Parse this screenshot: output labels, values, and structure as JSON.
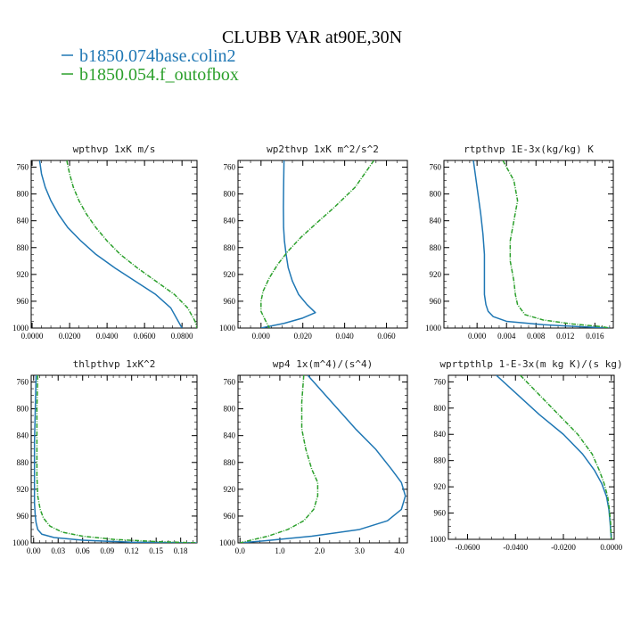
{
  "figure": {
    "title": "CLUBB VAR at90E,30N",
    "legend": [
      {
        "label": "b1850.074base.colin2",
        "color": "#1f77b4"
      },
      {
        "label": "b1850.054.f_outofbox",
        "color": "#2ca02c"
      }
    ]
  },
  "chart_data": [
    {
      "type": "line",
      "title": "wpthvp  1xK m/s",
      "xlim": [
        -0.0005,
        0.088
      ],
      "ylim": [
        1000,
        750
      ],
      "xticks": [
        0.0,
        0.02,
        0.04,
        0.06,
        0.08
      ],
      "xtick_labels": [
        "0.0000",
        "0.0200",
        "0.0400",
        "0.0600",
        "0.0800"
      ],
      "yticks": [
        760,
        800,
        840,
        880,
        920,
        960,
        1000
      ],
      "ytick_labels": [
        "760",
        "800",
        "840",
        "880",
        "920",
        "960",
        "1000"
      ],
      "series": [
        {
          "name": "b1850.074base.colin2",
          "x": [
            0.004,
            0.005,
            0.007,
            0.01,
            0.014,
            0.019,
            0.026,
            0.034,
            0.044,
            0.055,
            0.066,
            0.074,
            0.078,
            0.08
          ],
          "y": [
            750,
            770,
            790,
            810,
            830,
            850,
            870,
            890,
            910,
            930,
            950,
            970,
            990,
            1000
          ]
        },
        {
          "name": "b1850.054.f_outofbox",
          "x": [
            0.0185,
            0.02,
            0.022,
            0.025,
            0.029,
            0.034,
            0.04,
            0.047,
            0.056,
            0.066,
            0.076,
            0.083,
            0.087,
            0.088
          ],
          "y": [
            750,
            770,
            790,
            810,
            830,
            850,
            870,
            890,
            910,
            930,
            950,
            970,
            990,
            1000
          ]
        }
      ]
    },
    {
      "type": "line",
      "title": "wp2thvp  1xK m^2/s^2",
      "xlim": [
        -0.011,
        0.07
      ],
      "ylim": [
        1000,
        750
      ],
      "xticks": [
        0.0,
        0.02,
        0.04,
        0.06
      ],
      "xtick_labels": [
        "0.000",
        "0.020",
        "0.040",
        "0.060"
      ],
      "yticks": [
        760,
        800,
        840,
        880,
        920,
        960,
        1000
      ],
      "ytick_labels": [
        "760",
        "800",
        "840",
        "880",
        "920",
        "960",
        "1000"
      ],
      "series": [
        {
          "name": "b1850.074base.colin2",
          "x": [
            0.011,
            0.0108,
            0.0107,
            0.0108,
            0.0112,
            0.012,
            0.013,
            0.015,
            0.018,
            0.022,
            0.026,
            0.02,
            0.011,
            0.0
          ],
          "y": [
            750,
            790,
            820,
            850,
            870,
            890,
            910,
            930,
            950,
            965,
            977,
            985,
            993,
            1000
          ]
        },
        {
          "name": "b1850.054.f_outofbox",
          "x": [
            0.054,
            0.045,
            0.035,
            0.026,
            0.019,
            0.013,
            0.008,
            0.004,
            0.001,
            0.0,
            0.0,
            0.002,
            0.004
          ],
          "y": [
            750,
            790,
            820,
            845,
            865,
            885,
            905,
            925,
            945,
            960,
            975,
            988,
            1000
          ]
        }
      ]
    },
    {
      "type": "line",
      "title": "rtpthvp  1E-3x(kg/kg) K",
      "xlim": [
        -0.0045,
        0.0185
      ],
      "ylim": [
        1000,
        750
      ],
      "xticks": [
        0.0,
        0.004,
        0.008,
        0.012,
        0.016
      ],
      "xtick_labels": [
        "0.000",
        "0.004",
        "0.008",
        "0.012",
        "0.016"
      ],
      "yticks": [
        760,
        800,
        840,
        880,
        920,
        960,
        1000
      ],
      "ytick_labels": [
        "760",
        "800",
        "840",
        "880",
        "920",
        "960",
        "1000"
      ],
      "series": [
        {
          "name": "b1850.074base.colin2",
          "x": [
            -0.0005,
            0.0,
            0.0005,
            0.0008,
            0.001,
            0.001,
            0.001,
            0.0012,
            0.0015,
            0.0022,
            0.004,
            0.009,
            0.014,
            0.018
          ],
          "y": [
            750,
            790,
            830,
            860,
            890,
            920,
            950,
            965,
            975,
            983,
            990,
            995,
            998,
            1000
          ]
        },
        {
          "name": "b1850.054.f_outofbox",
          "x": [
            0.0035,
            0.005,
            0.0055,
            0.005,
            0.0045,
            0.0045,
            0.005,
            0.0052,
            0.0055,
            0.0065,
            0.009,
            0.013,
            0.017,
            0.018
          ],
          "y": [
            750,
            780,
            810,
            840,
            870,
            900,
            930,
            950,
            965,
            980,
            988,
            994,
            998,
            1000
          ]
        }
      ]
    },
    {
      "type": "line",
      "title": "thlpthvp  1xK^2",
      "xlim": [
        -0.003,
        0.2
      ],
      "ylim": [
        1000,
        750
      ],
      "xticks": [
        0.0,
        0.03,
        0.06,
        0.09,
        0.12,
        0.15,
        0.18
      ],
      "xtick_labels": [
        "0.00",
        "0.03",
        "0.06",
        "0.09",
        "0.12",
        "0.15",
        "0.18"
      ],
      "yticks": [
        760,
        800,
        840,
        880,
        920,
        960,
        1000
      ],
      "ytick_labels": [
        "760",
        "800",
        "840",
        "880",
        "920",
        "960",
        "1000"
      ],
      "series": [
        {
          "name": "b1850.074base.colin2",
          "x": [
            0.003,
            0.002,
            0.001,
            0.001,
            0.001,
            0.002,
            0.003,
            0.005,
            0.01,
            0.025,
            0.06,
            0.12,
            0.2
          ],
          "y": [
            750,
            800,
            850,
            900,
            940,
            960,
            970,
            980,
            987,
            992,
            996,
            999,
            1000
          ]
        },
        {
          "name": "b1850.054.f_outofbox",
          "x": [
            0.005,
            0.004,
            0.004,
            0.004,
            0.005,
            0.008,
            0.012,
            0.02,
            0.035,
            0.06,
            0.1,
            0.15,
            0.2
          ],
          "y": [
            750,
            800,
            850,
            900,
            930,
            950,
            963,
            975,
            984,
            990,
            995,
            998,
            1000
          ]
        }
      ]
    },
    {
      "type": "line",
      "title": "wp4  1x(m^4)/(s^4)",
      "xlim": [
        -0.05,
        4.2
      ],
      "ylim": [
        1000,
        750
      ],
      "xticks": [
        0.0,
        1.0,
        2.0,
        3.0,
        4.0
      ],
      "xtick_labels": [
        "0.0",
        "1.0",
        "2.0",
        "3.0",
        "4.0"
      ],
      "yticks": [
        760,
        800,
        840,
        880,
        920,
        960,
        1000
      ],
      "ytick_labels": [
        "760",
        "800",
        "840",
        "880",
        "920",
        "960",
        "1000"
      ],
      "series": [
        {
          "name": "b1850.074base.colin2",
          "x": [
            1.7,
            2.3,
            2.9,
            3.4,
            3.8,
            4.05,
            4.15,
            4.05,
            3.7,
            3.0,
            1.8,
            0.6,
            0.0
          ],
          "y": [
            750,
            790,
            830,
            860,
            890,
            910,
            930,
            950,
            967,
            980,
            990,
            997,
            1000
          ]
        },
        {
          "name": "b1850.054.f_outofbox",
          "x": [
            1.6,
            1.55,
            1.55,
            1.65,
            1.8,
            1.95,
            1.95,
            1.85,
            1.6,
            1.2,
            0.7,
            0.2,
            0.0
          ],
          "y": [
            750,
            790,
            830,
            860,
            890,
            910,
            930,
            950,
            967,
            980,
            990,
            997,
            1000
          ]
        }
      ]
    },
    {
      "type": "line",
      "title": "wprtpthlp  1-E-3x(m kg K)/(s kg)",
      "xlim": [
        -0.068,
        0.0012
      ],
      "ylim": [
        1000,
        750
      ],
      "xticks": [
        -0.06,
        -0.04,
        -0.02,
        0.0
      ],
      "xtick_labels": [
        "-0.0600",
        "-0.0400",
        "-0.0200",
        "0.0000"
      ],
      "yticks": [
        760,
        800,
        840,
        880,
        920,
        960,
        1000
      ],
      "ytick_labels": [
        "760",
        "800",
        "840",
        "880",
        "920",
        "960",
        "1000"
      ],
      "series": [
        {
          "name": "b1850.074base.colin2",
          "x": [
            -0.048,
            -0.039,
            -0.03,
            -0.02,
            -0.012,
            -0.007,
            -0.004,
            -0.002,
            -0.001,
            -0.0005,
            0.0
          ],
          "y": [
            750,
            780,
            810,
            840,
            870,
            895,
            915,
            935,
            955,
            975,
            1000
          ]
        },
        {
          "name": "b1850.054.f_outofbox",
          "x": [
            -0.038,
            -0.03,
            -0.022,
            -0.014,
            -0.008,
            -0.005,
            -0.003,
            -0.0015,
            -0.0008,
            -0.0003,
            0.0
          ],
          "y": [
            750,
            780,
            810,
            840,
            870,
            895,
            915,
            935,
            955,
            975,
            1000
          ]
        }
      ]
    }
  ]
}
